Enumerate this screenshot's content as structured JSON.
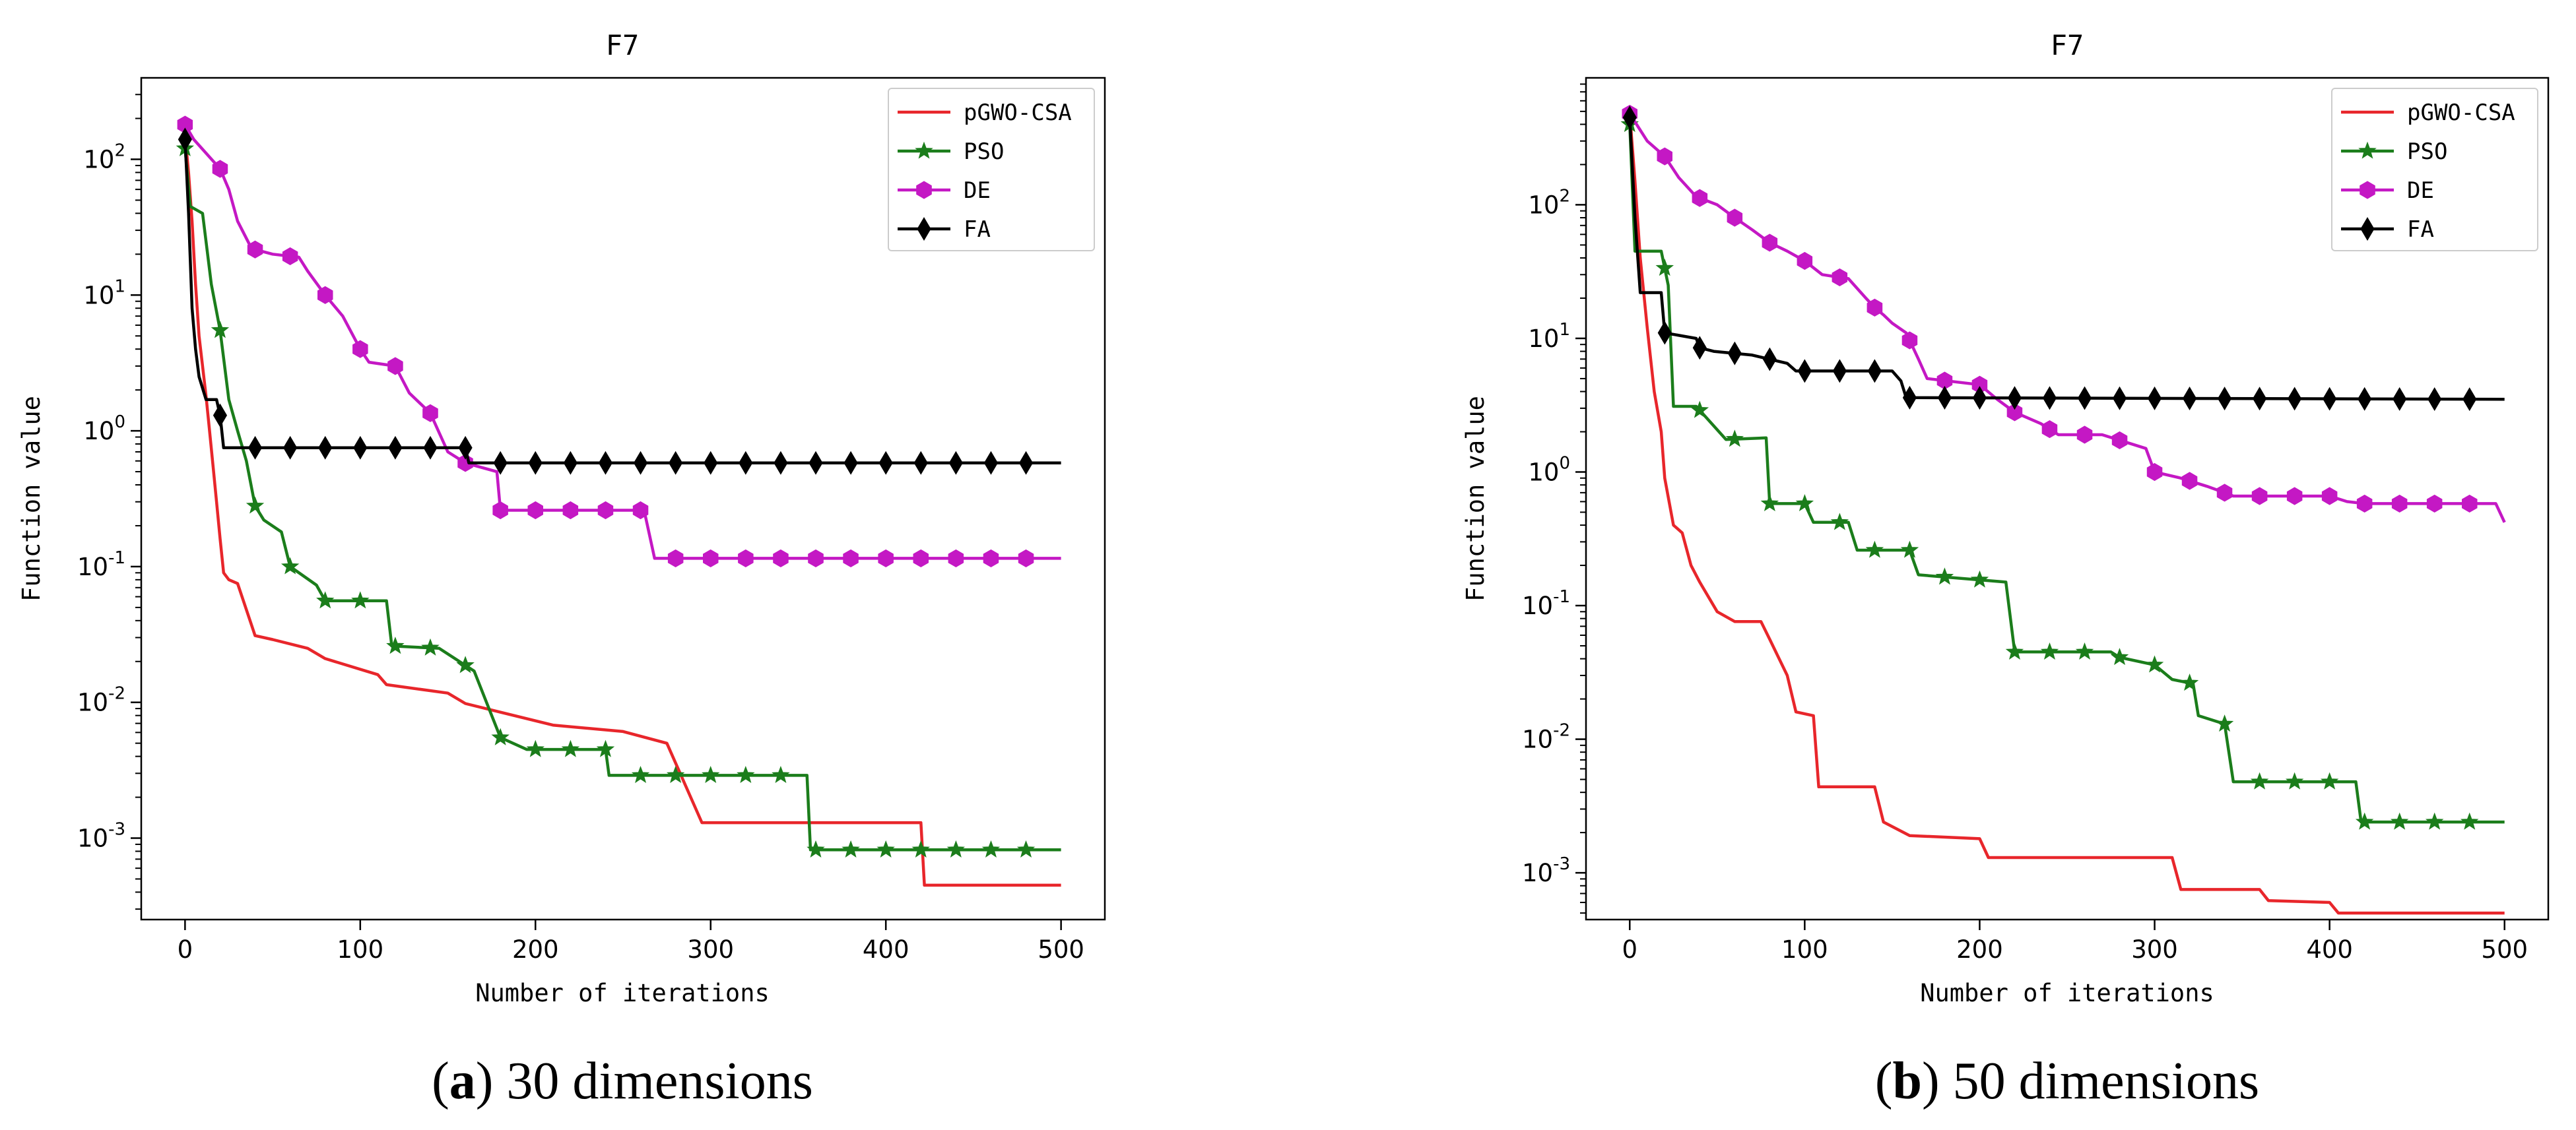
{
  "chart_data": [
    {
      "type": "line",
      "title": "F7",
      "xlabel": "Number of iterations",
      "ylabel": "Function value",
      "yscale": "log",
      "xlim": [
        -25,
        525
      ],
      "ylim_log10": [
        -3.6,
        2.6
      ],
      "xticks": [
        0,
        100,
        200,
        300,
        400,
        500
      ],
      "yticks": [
        {
          "exp": -3,
          "label": "10",
          "sup": "-3"
        },
        {
          "exp": -2,
          "label": "10",
          "sup": "-2"
        },
        {
          "exp": -1,
          "label": "10",
          "sup": "-1"
        },
        {
          "exp": 0,
          "label": "10",
          "sup": "0"
        },
        {
          "exp": 1,
          "label": "10",
          "sup": "1"
        },
        {
          "exp": 2,
          "label": "10",
          "sup": "2"
        }
      ],
      "legend_position": "top-right",
      "caption": {
        "letter": "a",
        "text": " 30 dimensions"
      },
      "series": [
        {
          "name": "pGWO-CSA",
          "color": "#e8262b",
          "marker": "none",
          "points": [
            [
              0,
              150
            ],
            [
              2,
              80
            ],
            [
              4,
              35
            ],
            [
              6,
              12
            ],
            [
              8,
              5
            ],
            [
              10,
              3
            ],
            [
              12,
              1.8
            ],
            [
              14,
              1.0
            ],
            [
              16,
              0.55
            ],
            [
              18,
              0.3
            ],
            [
              20,
              0.16
            ],
            [
              22,
              0.09
            ],
            [
              25,
              0.08
            ],
            [
              30,
              0.075
            ],
            [
              40,
              0.031
            ],
            [
              50,
              0.029
            ],
            [
              70,
              0.025
            ],
            [
              80,
              0.021
            ],
            [
              110,
              0.016
            ],
            [
              115,
              0.0135
            ],
            [
              150,
              0.0117
            ],
            [
              160,
              0.0098
            ],
            [
              210,
              0.0068
            ],
            [
              250,
              0.0061
            ],
            [
              275,
              0.005
            ],
            [
              295,
              0.0013
            ],
            [
              420,
              0.0013
            ],
            [
              422,
              0.00045
            ],
            [
              500,
              0.00045
            ]
          ]
        },
        {
          "name": "PSO",
          "color": "#1b7d1b",
          "marker": "star",
          "points": [
            [
              0,
              120
            ],
            [
              3,
              45
            ],
            [
              10,
              40
            ],
            [
              15,
              12
            ],
            [
              20,
              5.5
            ],
            [
              25,
              1.7
            ],
            [
              30,
              1.0
            ],
            [
              35,
              0.6
            ],
            [
              40,
              0.28
            ],
            [
              45,
              0.22
            ],
            [
              55,
              0.18
            ],
            [
              60,
              0.1
            ],
            [
              75,
              0.073
            ],
            [
              80,
              0.056
            ],
            [
              115,
              0.056
            ],
            [
              118,
              0.026
            ],
            [
              145,
              0.025
            ],
            [
              165,
              0.017
            ],
            [
              180,
              0.0055
            ],
            [
              195,
              0.0045
            ],
            [
              240,
              0.0045
            ],
            [
              242,
              0.0029
            ],
            [
              355,
              0.0029
            ],
            [
              357,
              0.00082
            ],
            [
              500,
              0.00082
            ]
          ]
        },
        {
          "name": "DE",
          "color": "#c418c4",
          "marker": "hexagon",
          "points": [
            [
              0,
              180
            ],
            [
              5,
              140
            ],
            [
              20,
              85
            ],
            [
              25,
              60
            ],
            [
              30,
              35
            ],
            [
              38,
              22
            ],
            [
              50,
              20
            ],
            [
              65,
              19
            ],
            [
              70,
              15
            ],
            [
              80,
              10
            ],
            [
              90,
              7
            ],
            [
              100,
              4
            ],
            [
              105,
              3.2
            ],
            [
              120,
              3.0
            ],
            [
              128,
              1.9
            ],
            [
              140,
              1.35
            ],
            [
              150,
              0.7
            ],
            [
              160,
              0.58
            ],
            [
              178,
              0.5
            ],
            [
              180,
              0.26
            ],
            [
              262,
              0.26
            ],
            [
              268,
              0.115
            ],
            [
              500,
              0.115
            ]
          ]
        },
        {
          "name": "FA",
          "color": "#000000",
          "marker": "diamond",
          "points": [
            [
              0,
              140
            ],
            [
              2,
              40
            ],
            [
              4,
              8
            ],
            [
              6,
              4
            ],
            [
              8,
              2.5
            ],
            [
              12,
              1.7
            ],
            [
              18,
              1.7
            ],
            [
              20,
              1.3
            ],
            [
              22,
              0.75
            ],
            [
              160,
              0.75
            ],
            [
              162,
              0.58
            ],
            [
              500,
              0.58
            ]
          ]
        }
      ]
    },
    {
      "type": "line",
      "title": "F7",
      "xlabel": "Number of iterations",
      "ylabel": "Function value",
      "yscale": "log",
      "xlim": [
        -25,
        525
      ],
      "ylim_log10": [
        -3.35,
        2.95
      ],
      "xticks": [
        0,
        100,
        200,
        300,
        400,
        500
      ],
      "yticks": [
        {
          "exp": -3,
          "label": "10",
          "sup": "-3"
        },
        {
          "exp": -2,
          "label": "10",
          "sup": "-2"
        },
        {
          "exp": -1,
          "label": "10",
          "sup": "-1"
        },
        {
          "exp": 0,
          "label": "10",
          "sup": "0"
        },
        {
          "exp": 1,
          "label": "10",
          "sup": "1"
        },
        {
          "exp": 2,
          "label": "10",
          "sup": "2"
        }
      ],
      "legend_position": "top-right",
      "caption": {
        "letter": "b",
        "text": " 50 dimensions"
      },
      "series": [
        {
          "name": "pGWO-CSA",
          "color": "#e8262b",
          "marker": "none",
          "points": [
            [
              0,
              480
            ],
            [
              3,
              150
            ],
            [
              6,
              40
            ],
            [
              10,
              12
            ],
            [
              14,
              4
            ],
            [
              18,
              2
            ],
            [
              20,
              0.9
            ],
            [
              25,
              0.4
            ],
            [
              30,
              0.35
            ],
            [
              35,
              0.2
            ],
            [
              40,
              0.15
            ],
            [
              50,
              0.09
            ],
            [
              60,
              0.076
            ],
            [
              75,
              0.076
            ],
            [
              80,
              0.056
            ],
            [
              90,
              0.03
            ],
            [
              95,
              0.016
            ],
            [
              105,
              0.015
            ],
            [
              108,
              0.0044
            ],
            [
              140,
              0.0044
            ],
            [
              145,
              0.0024
            ],
            [
              160,
              0.0019
            ],
            [
              200,
              0.0018
            ],
            [
              205,
              0.0013
            ],
            [
              310,
              0.0013
            ],
            [
              315,
              0.00075
            ],
            [
              360,
              0.00075
            ],
            [
              365,
              0.00062
            ],
            [
              400,
              0.0006
            ],
            [
              405,
              0.0005
            ],
            [
              500,
              0.0005
            ]
          ]
        },
        {
          "name": "PSO",
          "color": "#1b7d1b",
          "marker": "star",
          "points": [
            [
              0,
              400
            ],
            [
              3,
              45
            ],
            [
              18,
              45
            ],
            [
              22,
              25
            ],
            [
              25,
              3.1
            ],
            [
              38,
              3.1
            ],
            [
              55,
              1.75
            ],
            [
              78,
              1.8
            ],
            [
              80,
              0.58
            ],
            [
              100,
              0.58
            ],
            [
              105,
              0.42
            ],
            [
              125,
              0.42
            ],
            [
              130,
              0.26
            ],
            [
              160,
              0.26
            ],
            [
              165,
              0.17
            ],
            [
              215,
              0.15
            ],
            [
              220,
              0.045
            ],
            [
              275,
              0.045
            ],
            [
              280,
              0.041
            ],
            [
              300,
              0.036
            ],
            [
              310,
              0.028
            ],
            [
              322,
              0.026
            ],
            [
              325,
              0.015
            ],
            [
              340,
              0.013
            ],
            [
              345,
              0.0048
            ],
            [
              415,
              0.0048
            ],
            [
              418,
              0.0024
            ],
            [
              500,
              0.0024
            ]
          ]
        },
        {
          "name": "DE",
          "color": "#c418c4",
          "marker": "hexagon",
          "points": [
            [
              0,
              480
            ],
            [
              10,
              300
            ],
            [
              20,
              230
            ],
            [
              28,
              160
            ],
            [
              38,
              115
            ],
            [
              50,
              100
            ],
            [
              60,
              80
            ],
            [
              70,
              65
            ],
            [
              80,
              52
            ],
            [
              90,
              45
            ],
            [
              100,
              38
            ],
            [
              110,
              30
            ],
            [
              125,
              28
            ],
            [
              135,
              20
            ],
            [
              140,
              17
            ],
            [
              145,
              15
            ],
            [
              150,
              13
            ],
            [
              158,
              11
            ],
            [
              165,
              7
            ],
            [
              170,
              5
            ],
            [
              200,
              4.5
            ],
            [
              210,
              3.5
            ],
            [
              220,
              2.8
            ],
            [
              235,
              2.3
            ],
            [
              245,
              1.9
            ],
            [
              270,
              1.9
            ],
            [
              295,
              1.5
            ],
            [
              300,
              1.0
            ],
            [
              315,
              0.9
            ],
            [
              330,
              0.78
            ],
            [
              340,
              0.7
            ],
            [
              345,
              0.66
            ],
            [
              400,
              0.66
            ],
            [
              410,
              0.6
            ],
            [
              420,
              0.58
            ],
            [
              495,
              0.58
            ],
            [
              500,
              0.42
            ]
          ]
        },
        {
          "name": "FA",
          "color": "#000000",
          "marker": "diamond",
          "points": [
            [
              0,
              450
            ],
            [
              3,
              80
            ],
            [
              6,
              22
            ],
            [
              18,
              22
            ],
            [
              20,
              11
            ],
            [
              38,
              10
            ],
            [
              40,
              8.5
            ],
            [
              48,
              8
            ],
            [
              70,
              7.5
            ],
            [
              90,
              6.5
            ],
            [
              95,
              5.7
            ],
            [
              150,
              5.7
            ],
            [
              155,
              4.8
            ],
            [
              158,
              3.6
            ],
            [
              500,
              3.5
            ]
          ]
        }
      ]
    }
  ]
}
